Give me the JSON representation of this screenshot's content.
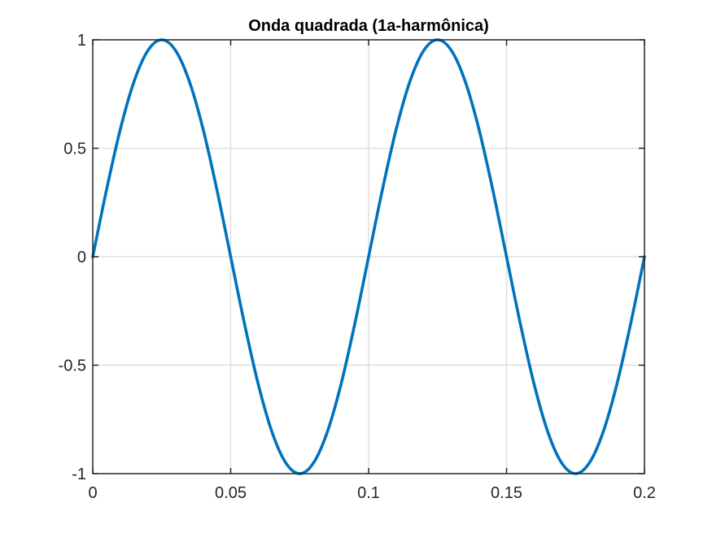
{
  "chart_data": {
    "type": "line",
    "title": "Onda quadrada (1a-harmônica)",
    "xlabel": "",
    "ylabel": "",
    "xlim": [
      0,
      0.2
    ],
    "ylim": [
      -1,
      1
    ],
    "grid": true,
    "x_ticks": [
      0,
      0.05,
      0.1,
      0.15,
      0.2
    ],
    "x_tick_labels": [
      "0",
      "0.05",
      "0.1",
      "0.15",
      "0.2"
    ],
    "y_ticks": [
      -1,
      -0.5,
      0,
      0.5,
      1
    ],
    "y_tick_labels": [
      "-1",
      "-0.5",
      "0",
      "0.5",
      "1"
    ],
    "series": [
      {
        "color": "#0072bd",
        "x": [
          0,
          0.005,
          0.01,
          0.015,
          0.02,
          0.025,
          0.03,
          0.035,
          0.04,
          0.045,
          0.05,
          0.055,
          0.06,
          0.065,
          0.07,
          0.075,
          0.08,
          0.085,
          0.09,
          0.095,
          0.1,
          0.105,
          0.11,
          0.115,
          0.12,
          0.125,
          0.13,
          0.135,
          0.14,
          0.145,
          0.15,
          0.155,
          0.16,
          0.165,
          0.17,
          0.175,
          0.18,
          0.185,
          0.19,
          0.195,
          0.2
        ],
        "y": [
          0,
          0.309,
          0.588,
          0.809,
          0.951,
          1,
          0.951,
          0.809,
          0.588,
          0.309,
          0,
          -0.309,
          -0.588,
          -0.809,
          -0.951,
          -1,
          -0.951,
          -0.809,
          -0.588,
          -0.309,
          0,
          0.309,
          0.588,
          0.809,
          0.951,
          1,
          0.951,
          0.809,
          0.588,
          0.309,
          0,
          -0.309,
          -0.588,
          -0.809,
          -0.951,
          -1,
          -0.951,
          -0.809,
          -0.588,
          -0.309,
          0
        ]
      }
    ]
  }
}
